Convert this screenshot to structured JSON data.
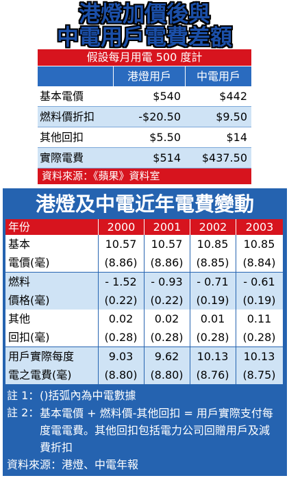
{
  "header": {
    "title_lines": [
      "港燈加價後與",
      "中電用戶電費差額"
    ]
  },
  "table1": {
    "caption": "假設每月用電 500 度計",
    "columns": [
      "港燈用戶",
      "中電用戶"
    ],
    "rows": [
      {
        "label": "基本電價",
        "values": [
          "$540",
          "$442"
        ]
      },
      {
        "label": "燃料價折扣",
        "values": [
          "-$20.50",
          "$9.50"
        ]
      },
      {
        "label": "其他回扣",
        "values": [
          "$5.50",
          "$14"
        ]
      },
      {
        "label": "實際電費",
        "values": [
          "$514",
          "$437.50"
        ]
      }
    ],
    "source": "資料來源：《蘋果》資料室"
  },
  "table2": {
    "title": "港燈及中電近年電費變動",
    "header": [
      "年份",
      "2000",
      "2001",
      "2002",
      "2003"
    ],
    "rows": [
      {
        "label": [
          "基本",
          "電價(毫)"
        ],
        "values": [
          [
            "10.57",
            "(8.86)"
          ],
          [
            "10.57",
            "(8.86)"
          ],
          [
            "10.85",
            "(8.85)"
          ],
          [
            "10.85",
            "(8.84)"
          ]
        ]
      },
      {
        "label": [
          "燃料",
          "價格(毫)"
        ],
        "values": [
          [
            "- 1.52",
            "(0.22)"
          ],
          [
            "- 0.93",
            "(0.22)"
          ],
          [
            "- 0.71",
            "(0.19)"
          ],
          [
            "- 0.61",
            "(0.19)"
          ]
        ]
      },
      {
        "label": [
          "其他",
          "回扣(毫)"
        ],
        "values": [
          [
            "0.02",
            "(0.28)"
          ],
          [
            "0.02",
            "(0.28)"
          ],
          [
            "0.01",
            "(0.28)"
          ],
          [
            "0.11",
            "(0.28)"
          ]
        ]
      },
      {
        "label": [
          "用戶實際每度",
          "電之電費(毫)"
        ],
        "values": [
          [
            "9.03",
            "(8.80)"
          ],
          [
            "9.62",
            "(8.80)"
          ],
          [
            "10.13",
            "(8.76)"
          ],
          [
            "10.13",
            "(8.75)"
          ]
        ]
      }
    ],
    "notes": [
      {
        "label": "註 1：",
        "text": "()括弧內為中電數據"
      },
      {
        "label": "註 2：",
        "text": "基本電價 + 燃料價-其他回扣 = 用戶實際支付每度電電費。其他回扣包括電力公司回贈用戶及減費折扣"
      }
    ],
    "source": "資料來源：港燈、中電年報"
  }
}
